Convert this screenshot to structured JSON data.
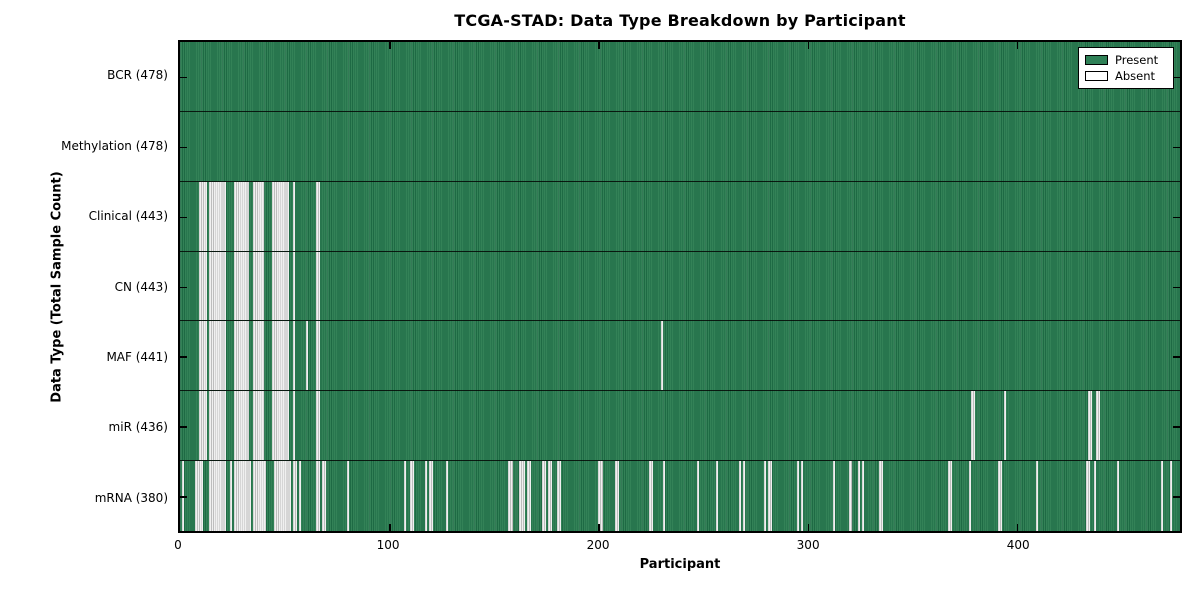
{
  "title": "TCGA-STAD: Data Type Breakdown by Participant",
  "xlabel": "Participant",
  "ylabel": "Data Type (Total Sample Count)",
  "legend": {
    "present_label": "Present",
    "absent_label": "Absent"
  },
  "colors": {
    "present_fill": "#2e8056",
    "present_edge": "#1e6a44",
    "absent_fill": "#f0f0f0",
    "absent_edge": "#bdbdbd",
    "axis": "#000000",
    "background": "#ffffff"
  },
  "chart_data": {
    "type": "heatmap",
    "title": "TCGA-STAD: Data Type Breakdown by Participant",
    "xlabel": "Participant",
    "ylabel": "Data Type (Total Sample Count)",
    "x_range": [
      0,
      478
    ],
    "x_ticks": [
      0,
      100,
      200,
      300,
      400
    ],
    "legend_entries": [
      "Present",
      "Absent"
    ],
    "legend_position": "upper right",
    "grid": false,
    "rows": [
      {
        "name": "BCR",
        "label": "BCR (478)",
        "total": 478,
        "absent_ranges": []
      },
      {
        "name": "Methylation",
        "label": "Methylation (478)",
        "total": 478,
        "absent_ranges": []
      },
      {
        "name": "Clinical",
        "label": "Clinical (443)",
        "total": 443,
        "absent_ranges": [
          [
            9,
            13
          ],
          [
            14,
            22
          ],
          [
            26,
            33
          ],
          [
            35,
            40
          ],
          [
            44,
            52
          ],
          [
            54,
            55
          ],
          [
            65,
            67
          ]
        ]
      },
      {
        "name": "CN",
        "label": "CN (443)",
        "total": 443,
        "absent_ranges": [
          [
            9,
            13
          ],
          [
            14,
            22
          ],
          [
            26,
            33
          ],
          [
            35,
            40
          ],
          [
            44,
            52
          ],
          [
            54,
            55
          ],
          [
            65,
            67
          ]
        ]
      },
      {
        "name": "MAF",
        "label": "MAF (441)",
        "total": 441,
        "absent_ranges": [
          [
            9,
            13
          ],
          [
            14,
            22
          ],
          [
            26,
            33
          ],
          [
            35,
            40
          ],
          [
            44,
            52
          ],
          [
            54,
            55
          ],
          [
            60,
            61
          ],
          [
            65,
            67
          ],
          [
            230,
            231
          ]
        ]
      },
      {
        "name": "miR",
        "label": "miR (436)",
        "total": 436,
        "absent_ranges": [
          [
            9,
            13
          ],
          [
            14,
            22
          ],
          [
            26,
            33
          ],
          [
            35,
            40
          ],
          [
            44,
            52
          ],
          [
            54,
            55
          ],
          [
            65,
            67
          ],
          [
            378,
            380
          ],
          [
            394,
            395
          ],
          [
            434,
            436
          ],
          [
            438,
            440
          ]
        ]
      },
      {
        "name": "mRNA",
        "label": "mRNA (380)",
        "total": 380,
        "absent_ranges": [
          [
            1,
            2
          ],
          [
            7,
            11
          ],
          [
            14,
            22
          ],
          [
            24,
            25
          ],
          [
            26,
            34
          ],
          [
            35,
            41
          ],
          [
            45,
            53
          ],
          [
            54,
            56
          ],
          [
            57,
            58
          ],
          [
            65,
            67
          ],
          [
            68,
            70
          ],
          [
            80,
            81
          ],
          [
            107,
            108
          ],
          [
            110,
            112
          ],
          [
            117,
            118
          ],
          [
            119,
            121
          ],
          [
            127,
            128
          ],
          [
            157,
            159
          ],
          [
            162,
            165
          ],
          [
            166,
            168
          ],
          [
            173,
            175
          ],
          [
            176,
            178
          ],
          [
            180,
            182
          ],
          [
            200,
            202
          ],
          [
            208,
            210
          ],
          [
            224,
            226
          ],
          [
            231,
            232
          ],
          [
            247,
            248
          ],
          [
            256,
            257
          ],
          [
            267,
            268
          ],
          [
            269,
            270
          ],
          [
            279,
            280
          ],
          [
            281,
            283
          ],
          [
            295,
            296
          ],
          [
            297,
            298
          ],
          [
            312,
            313
          ],
          [
            320,
            321
          ],
          [
            324,
            325
          ],
          [
            326,
            327
          ],
          [
            334,
            336
          ],
          [
            367,
            369
          ],
          [
            377,
            378
          ],
          [
            391,
            393
          ],
          [
            409,
            410
          ],
          [
            433,
            435
          ],
          [
            437,
            438
          ],
          [
            448,
            449
          ],
          [
            469,
            470
          ],
          [
            473,
            474
          ]
        ]
      }
    ]
  }
}
